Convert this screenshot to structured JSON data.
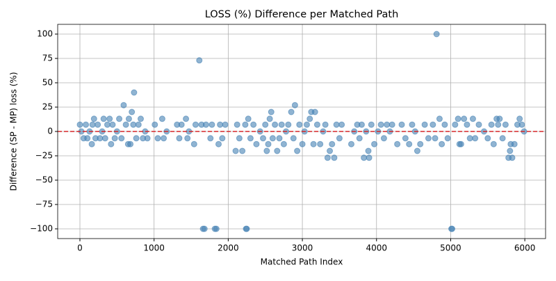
{
  "chart_data": {
    "type": "scatter",
    "title": "LOSS (%) Difference per Matched Path",
    "x_label": "Matched Path Index",
    "y_label": "Difference (SP - MP) loss (%)",
    "xlim": [
      -300,
      6280
    ],
    "ylim": [
      -110,
      110
    ],
    "xticks": [
      0,
      1000,
      2000,
      3000,
      4000,
      5000,
      6000
    ],
    "yticks": [
      {
        "value": -100,
        "label": "−100"
      },
      {
        "value": -75,
        "label": "−75"
      },
      {
        "value": -50,
        "label": "−50"
      },
      {
        "value": -25,
        "label": "−25"
      },
      0,
      25,
      50,
      75,
      100
    ],
    "grid": true,
    "reference_line": {
      "y": 0,
      "color": "#d62728",
      "dashed": true
    },
    "series": [
      {
        "color": "#4682b4",
        "alpha": 0.6,
        "x": [
          0,
          20,
          50,
          80,
          100,
          130,
          160,
          170,
          190,
          210,
          240,
          270,
          300,
          320,
          340,
          370,
          400,
          420,
          440,
          470,
          500,
          530,
          560,
          590,
          620,
          650,
          660,
          680,
          700,
          720,
          730,
          760,
          790,
          820,
          850,
          880,
          910,
          1010,
          1050,
          1110,
          1130,
          1170,
          1310,
          1340,
          1370,
          1430,
          1450,
          1470,
          1540,
          1560,
          1610,
          1640,
          1660,
          1680,
          1700,
          1760,
          1780,
          1820,
          1840,
          1870,
          1890,
          1920,
          1960,
          2100,
          2120,
          2150,
          2190,
          2230,
          2240,
          2250,
          2270,
          2300,
          2340,
          2380,
          2430,
          2470,
          2500,
          2520,
          2540,
          2560,
          2580,
          2600,
          2630,
          2660,
          2690,
          2720,
          2750,
          2780,
          2810,
          2850,
          2880,
          2900,
          2930,
          2960,
          3000,
          3030,
          3060,
          3100,
          3120,
          3150,
          3170,
          3200,
          3240,
          3280,
          3310,
          3340,
          3370,
          3400,
          3430,
          3460,
          3500,
          3530,
          3660,
          3700,
          3740,
          3770,
          3800,
          3830,
          3860,
          3890,
          3900,
          3930,
          3970,
          4020,
          4060,
          4100,
          4140,
          4180,
          4210,
          4280,
          4340,
          4390,
          4440,
          4480,
          4520,
          4550,
          4590,
          4650,
          4700,
          4760,
          4790,
          4810,
          4850,
          4880,
          4920,
          4960,
          5010,
          5020,
          5060,
          5100,
          5120,
          5140,
          5180,
          5220,
          5260,
          5300,
          5330,
          5380,
          5450,
          5500,
          5550,
          5580,
          5620,
          5640,
          5660,
          5700,
          5740,
          5780,
          5800,
          5810,
          5830,
          5860,
          5900,
          5930,
          5960,
          5990
        ],
        "values": [
          7,
          0,
          -7,
          7,
          -7,
          0,
          -13,
          7,
          13,
          -7,
          7,
          -7,
          0,
          13,
          -7,
          7,
          13,
          -13,
          7,
          -7,
          0,
          13,
          -7,
          27,
          7,
          -13,
          13,
          -13,
          20,
          7,
          40,
          -7,
          7,
          13,
          -7,
          0,
          -7,
          7,
          -7,
          13,
          -7,
          0,
          7,
          -7,
          7,
          13,
          -7,
          0,
          -13,
          7,
          73,
          7,
          -100,
          -100,
          7,
          -7,
          7,
          -100,
          -100,
          -13,
          7,
          -7,
          7,
          -20,
          7,
          -7,
          -20,
          7,
          -100,
          -100,
          13,
          -7,
          7,
          -13,
          0,
          -7,
          7,
          -20,
          -13,
          13,
          20,
          -7,
          7,
          -20,
          -7,
          7,
          -13,
          0,
          7,
          20,
          -7,
          27,
          -20,
          7,
          -13,
          0,
          7,
          13,
          20,
          -13,
          20,
          7,
          -13,
          0,
          7,
          -27,
          -20,
          -13,
          -27,
          7,
          -7,
          7,
          -13,
          0,
          7,
          -7,
          7,
          -27,
          0,
          -20,
          -27,
          7,
          -13,
          0,
          7,
          -7,
          7,
          0,
          7,
          -13,
          7,
          -7,
          -13,
          7,
          0,
          -20,
          -13,
          7,
          -7,
          7,
          -7,
          100,
          13,
          -13,
          7,
          -7,
          -100,
          -100,
          7,
          13,
          -13,
          -13,
          13,
          7,
          -7,
          13,
          -7,
          7,
          0,
          -7,
          7,
          -13,
          13,
          7,
          13,
          -7,
          7,
          -27,
          -20,
          -13,
          -27,
          -13,
          7,
          13,
          7,
          0
        ]
      }
    ]
  }
}
